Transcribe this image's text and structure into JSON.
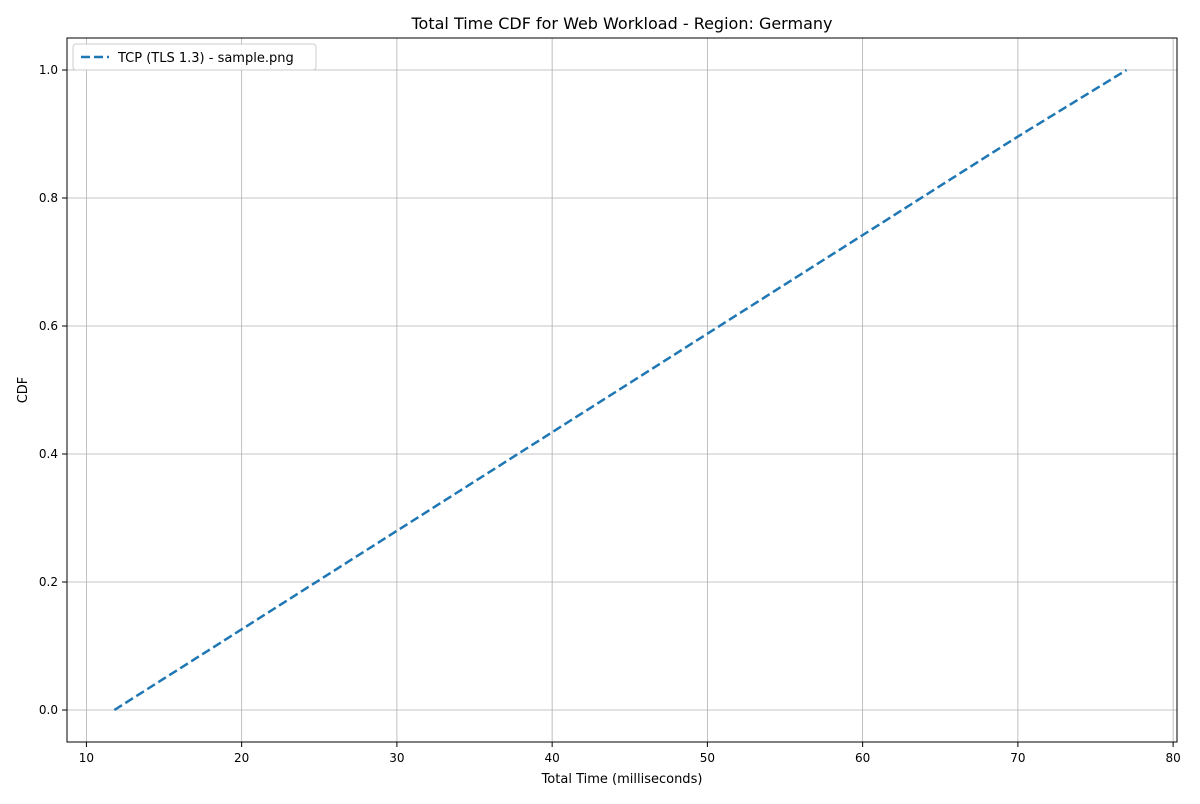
{
  "chart_data": {
    "type": "line",
    "title": "Total Time CDF for Web Workload - Region: Germany",
    "xlabel": "Total Time (milliseconds)",
    "ylabel": "CDF",
    "xlim": [
      8.75,
      80.25
    ],
    "ylim": [
      -0.05,
      1.05
    ],
    "x_ticks": [
      10,
      20,
      30,
      40,
      50,
      60,
      70,
      80
    ],
    "y_ticks": [
      0.0,
      0.2,
      0.4,
      0.6,
      0.8,
      1.0
    ],
    "x_tick_labels": [
      "10",
      "20",
      "30",
      "40",
      "50",
      "60",
      "70",
      "80"
    ],
    "y_tick_labels": [
      "0.0",
      "0.2",
      "0.4",
      "0.6",
      "0.8",
      "1.0"
    ],
    "grid": true,
    "legend_position": "top-left",
    "series": [
      {
        "name": "TCP (TLS 1.3) - sample.png",
        "color": "#1f77b4",
        "line_style": "dashed",
        "x": [
          11.8,
          20,
          30,
          40,
          50,
          60,
          70,
          77
        ],
        "y": [
          0.0,
          0.126,
          0.28,
          0.434,
          0.588,
          0.742,
          0.896,
          1.0
        ]
      }
    ]
  }
}
